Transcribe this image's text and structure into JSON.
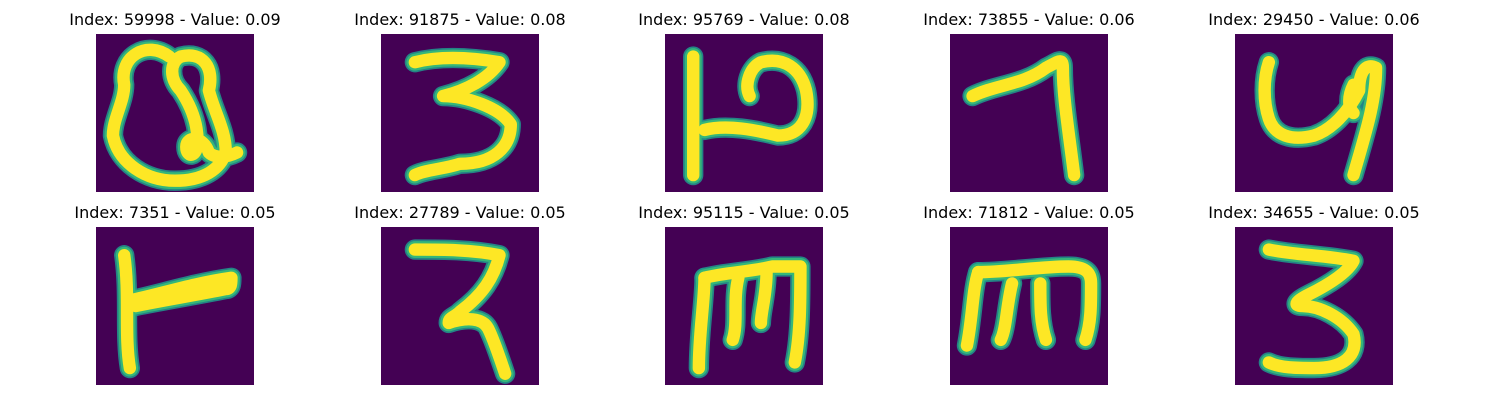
{
  "colors": {
    "background": "#440154",
    "stroke_core": "#fde725",
    "stroke_edge": "#35b779",
    "stroke_halo": "#21918c",
    "title": "#000000"
  },
  "panels": [
    {
      "title": "Index: 59998 - Value: 0.09",
      "index": 59998,
      "value": 0.09,
      "glyph": "heart-q"
    },
    {
      "title": "Index: 91875 - Value: 0.08",
      "index": 91875,
      "value": 0.08,
      "glyph": "three"
    },
    {
      "title": "Index: 95769 - Value: 0.08",
      "index": 95769,
      "value": 0.08,
      "glyph": "p-shape"
    },
    {
      "title": "Index: 73855 - Value: 0.06",
      "index": 73855,
      "value": 0.06,
      "glyph": "seven"
    },
    {
      "title": "Index: 29450 - Value: 0.06",
      "index": 29450,
      "value": 0.06,
      "glyph": "y-shape"
    },
    {
      "title": "Index: 7351 - Value: 0.05",
      "index": 7351,
      "value": 0.05,
      "glyph": "t-right"
    },
    {
      "title": "Index: 27789 - Value: 0.05",
      "index": 27789,
      "value": 0.05,
      "glyph": "r-shape"
    },
    {
      "title": "Index: 95115 - Value: 0.05",
      "index": 95115,
      "value": 0.05,
      "glyph": "m-shape"
    },
    {
      "title": "Index: 71812 - Value: 0.05",
      "index": 71812,
      "value": 0.05,
      "glyph": "m-shape-2"
    },
    {
      "title": "Index: 34655 - Value: 0.05",
      "index": 34655,
      "value": 0.05,
      "glyph": "three-2"
    }
  ]
}
